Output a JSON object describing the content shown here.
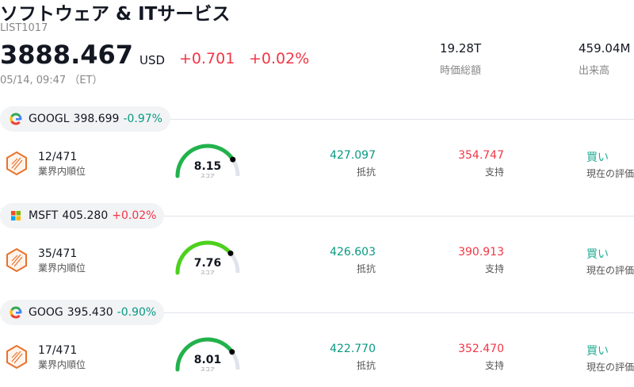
{
  "header": {
    "title": "ソフトウェア & ITサービス",
    "code": "LIST1017",
    "price": "3888.467",
    "currency": "USD",
    "change": "+0.701",
    "change_pct": "+0.02%",
    "time": "05/14, 09:47 （ET）",
    "stats": [
      {
        "value": "19.28T",
        "label": "時価総額"
      },
      {
        "value": "459.04M",
        "label": "出来高"
      }
    ]
  },
  "stocks": [
    {
      "ticker": "GOOGL",
      "logo": "google",
      "price": "398.699",
      "change": "-0.97%",
      "rank": "12/471",
      "rank_label": "業界内順位",
      "score": 8.15,
      "score_label": "スコア",
      "resistance": "427.097",
      "resistance_label": "抵抗",
      "support": "354.747",
      "support_label": "支持",
      "rating": "買い",
      "rating_label": "現在の評価"
    },
    {
      "ticker": "MSFT",
      "logo": "microsoft",
      "price": "405.280",
      "change": "+0.02%",
      "rank": "35/471",
      "rank_label": "業界内順位",
      "score": 7.76,
      "score_label": "スコア",
      "resistance": "426.603",
      "resistance_label": "抵抗",
      "support": "390.913",
      "support_label": "支持",
      "rating": "買い",
      "rating_label": "現在の評価"
    },
    {
      "ticker": "GOOG",
      "logo": "google",
      "price": "395.430",
      "change": "-0.90%",
      "rank": "17/471",
      "rank_label": "業界内順位",
      "score": 8.01,
      "score_label": "スコア",
      "resistance": "422.770",
      "resistance_label": "抵抗",
      "support": "352.470",
      "support_label": "支持",
      "rating": "買い",
      "rating_label": "現在の評価"
    }
  ]
}
